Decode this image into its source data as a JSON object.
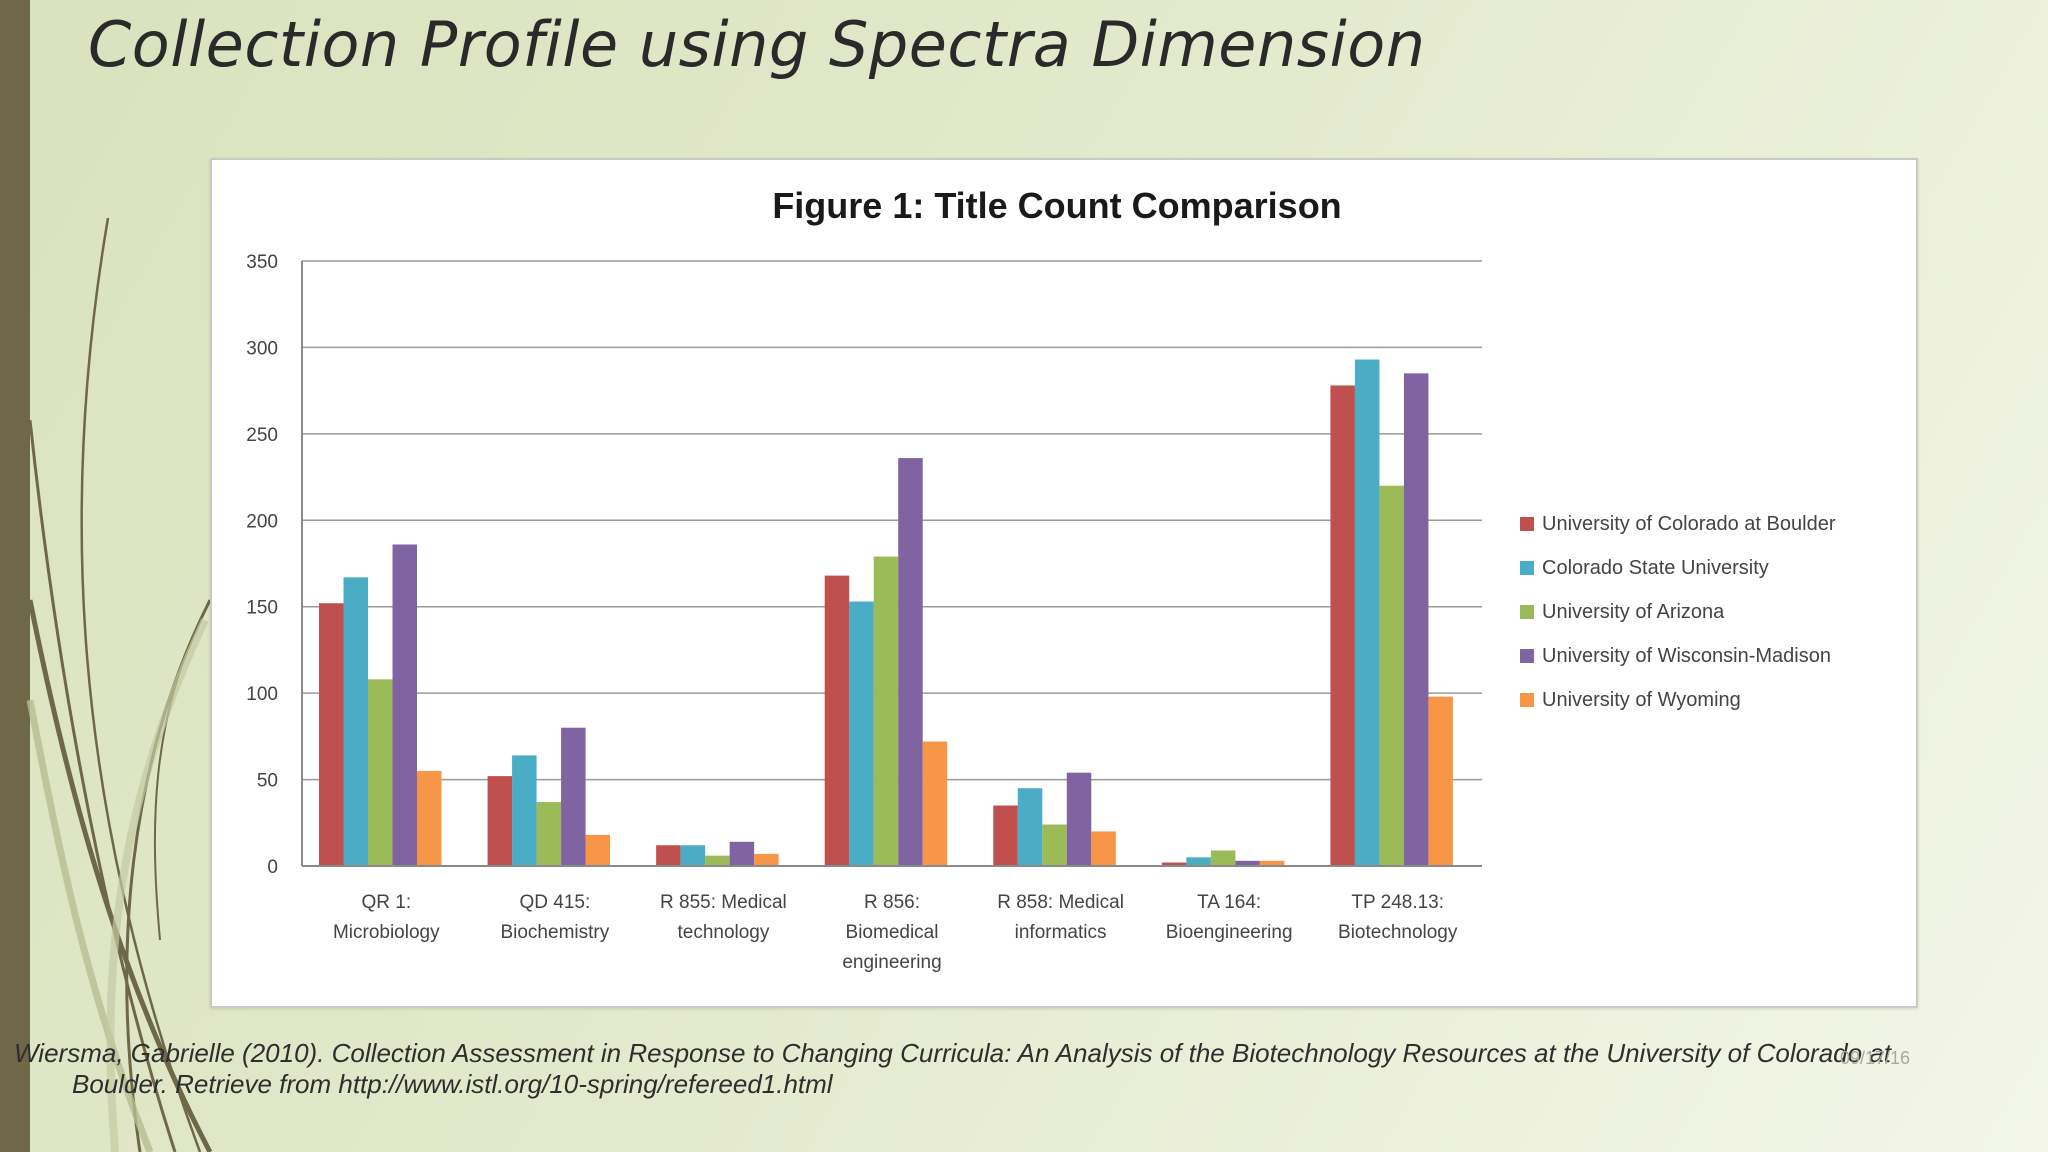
{
  "slide": {
    "title": "Collection Profile using Spectra Dimension",
    "citation_line1": "Wiersma, Gabrielle (2010). Collection Assessment in Response to Changing Curricula: An Analysis of the Biotechnology Resources at the University of Colorado at",
    "citation_line2": "Boulder. Retrieve from http://www.istl.org/10-spring/refereed1.html",
    "date": "09/17/16",
    "colors": {
      "background": "#dfe6c6",
      "side_bar": "#6e6748"
    }
  },
  "chart_data": {
    "type": "bar",
    "title": "Figure 1: Title Count Comparison",
    "xlabel": "",
    "ylabel": "",
    "ylim": [
      0,
      350
    ],
    "yticks": [
      "0",
      "50",
      "100",
      "150",
      "200",
      "250",
      "300",
      "350"
    ],
    "grid": true,
    "legend_position": "right",
    "categories": [
      [
        "QR 1:",
        "Microbiology"
      ],
      [
        "QD 415:",
        "Biochemistry"
      ],
      [
        "R 855: Medical",
        "technology"
      ],
      [
        "R 856:",
        "Biomedical",
        "engineering"
      ],
      [
        "R 858: Medical",
        "informatics"
      ],
      [
        "TA 164:",
        "Bioengineering"
      ],
      [
        "TP 248.13:",
        "Biotechnology"
      ]
    ],
    "series": [
      {
        "name": "University of Colorado at Boulder",
        "color": "#c0504d",
        "values": [
          152,
          52,
          12,
          168,
          35,
          2,
          278
        ]
      },
      {
        "name": "Colorado State University",
        "color": "#4bacc6",
        "values": [
          167,
          64,
          12,
          153,
          45,
          5,
          293
        ]
      },
      {
        "name": "University of Arizona",
        "color": "#9bbb59",
        "values": [
          108,
          37,
          6,
          179,
          24,
          9,
          220
        ]
      },
      {
        "name": "University of Wisconsin-Madison",
        "color": "#8064a2",
        "values": [
          186,
          80,
          14,
          236,
          54,
          3,
          285
        ]
      },
      {
        "name": "University of Wyoming",
        "color": "#f79646",
        "values": [
          55,
          18,
          7,
          72,
          20,
          3,
          98
        ]
      }
    ]
  }
}
